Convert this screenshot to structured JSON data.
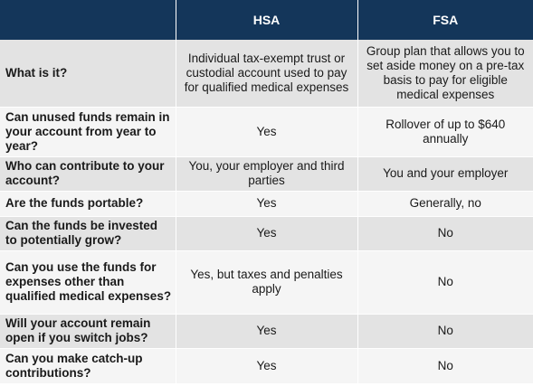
{
  "table": {
    "header": {
      "blank": "",
      "col1": "HSA",
      "col2": "FSA"
    },
    "rows": [
      {
        "question": "What is it?",
        "hsa": "Individual tax-exempt trust or custodial account used to pay for qualified medical expenses",
        "fsa": "Group plan that allows you to set aside money on a pre-tax basis to pay for eligible medical expenses"
      },
      {
        "question": "Can unused funds remain in your account from year to year?",
        "hsa": "Yes",
        "fsa": "Rollover of up to $640 annually"
      },
      {
        "question": "Who can contribute to your account?",
        "hsa": "You, your employer and third parties",
        "fsa": "You and your employer"
      },
      {
        "question": "Are the funds portable?",
        "hsa": "Yes",
        "fsa": "Generally, no"
      },
      {
        "question": "Can the funds be invested to potentially grow?",
        "hsa": "Yes",
        "fsa": "No"
      },
      {
        "question": "Can you use the funds for expenses other than qualified medical expenses?",
        "hsa": "Yes, but taxes and penalties apply",
        "fsa": "No"
      },
      {
        "question": "Will your account remain open if you switch jobs?",
        "hsa": "Yes",
        "fsa": "No"
      },
      {
        "question": "Can you make catch-up contributions?",
        "hsa": "Yes",
        "fsa": "No"
      }
    ]
  },
  "colors": {
    "header_bg": "#14365a",
    "header_text": "#ffffff",
    "row_shade": "#e3e3e3",
    "row_plain": "#f5f5f5"
  }
}
